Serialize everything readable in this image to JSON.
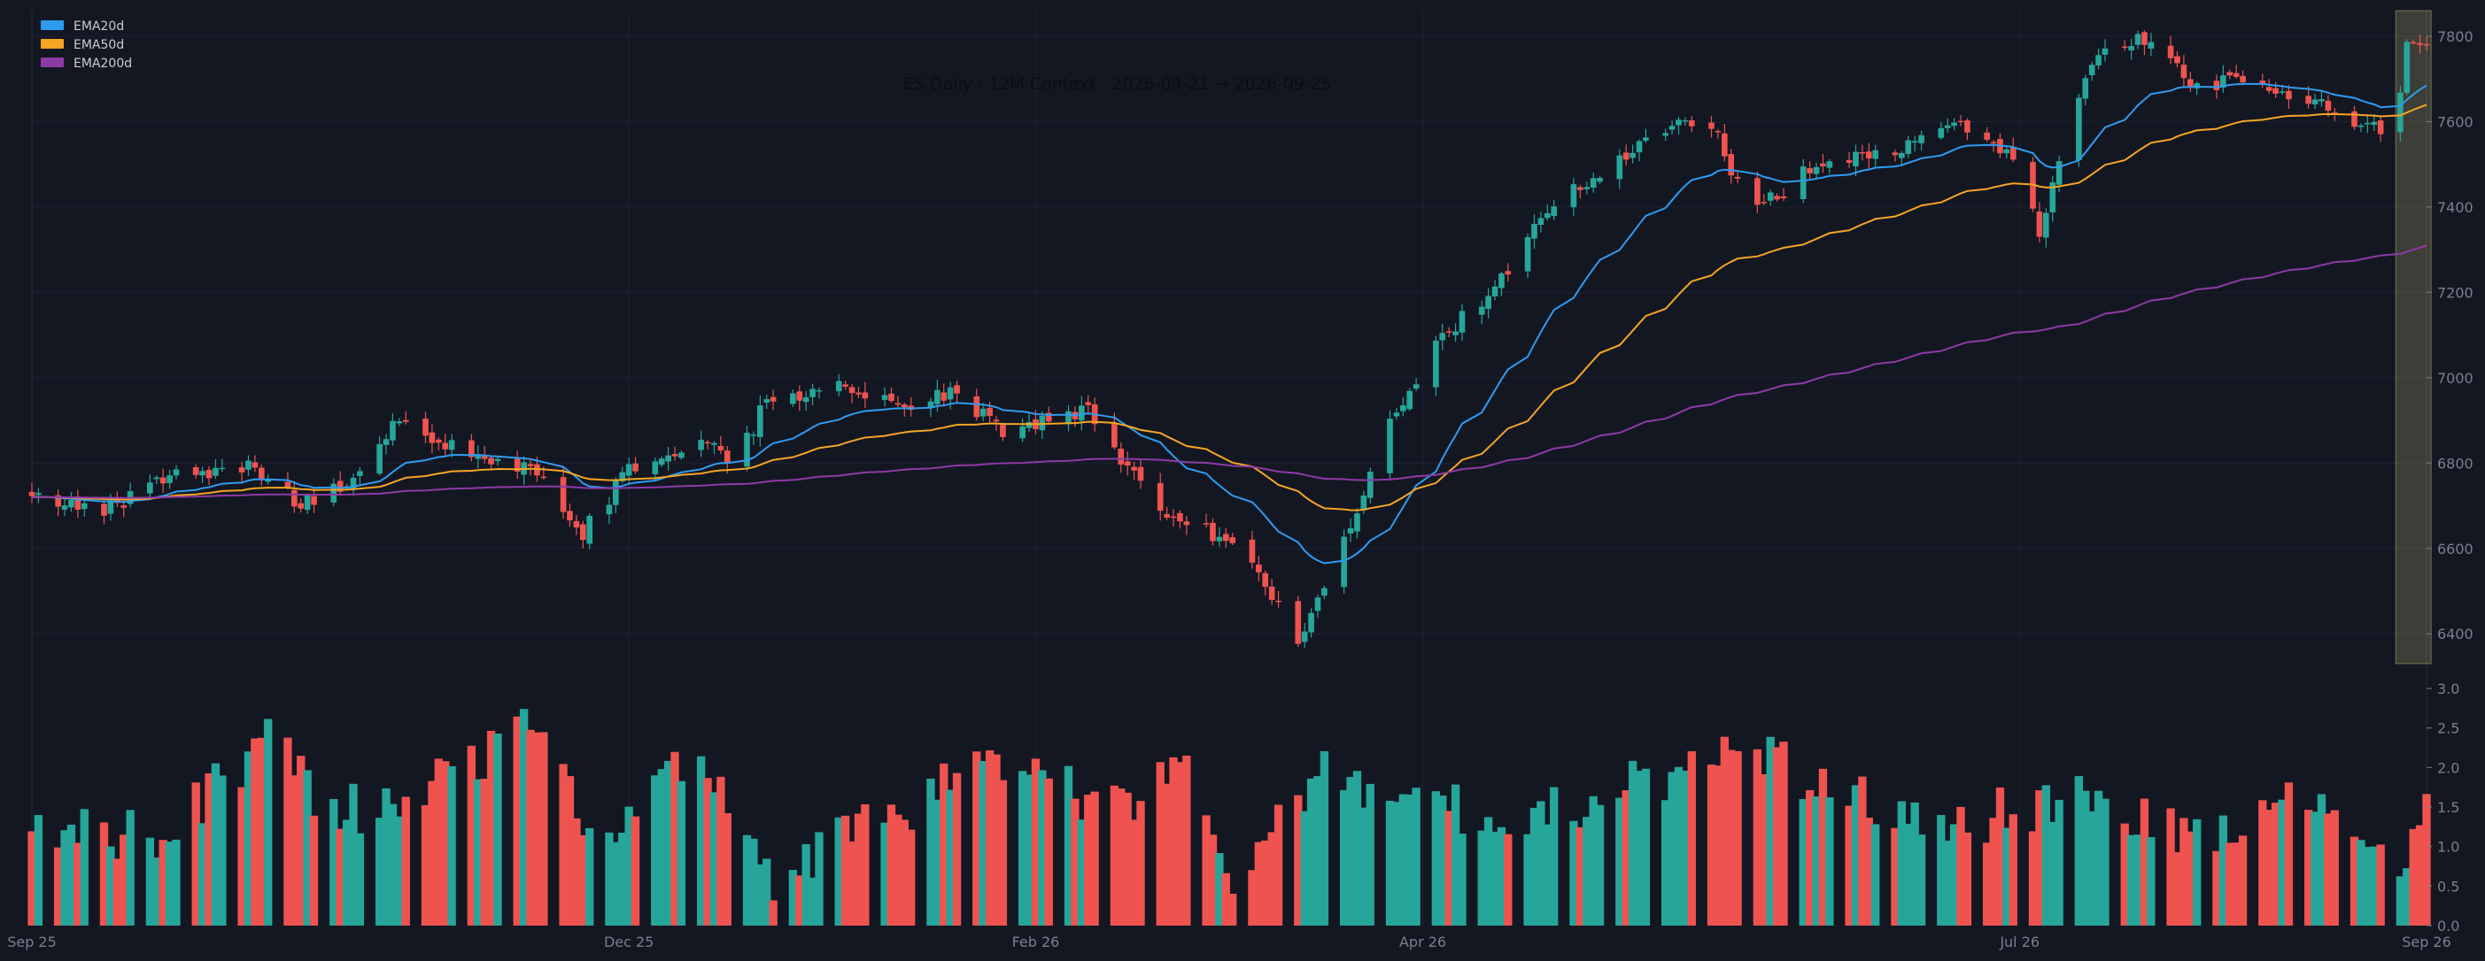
{
  "chart_data": {
    "type": "candlestick",
    "title": "ES Daily · 12M Context · 2026-09-21 → 2026-09-25",
    "start_date": "2025-09-25",
    "end_date": "2026-09-25",
    "price_axis": {
      "ylim": [
        6330,
        7860
      ],
      "ticks": [
        6400,
        6600,
        6800,
        7000,
        7200,
        7400,
        7600,
        7800
      ]
    },
    "volume_axis": {
      "ylim": [
        0,
        3.0
      ],
      "ticks": [
        "0.0",
        "0.5",
        "1.0",
        "1.5",
        "2.0",
        "2.5",
        "3.0"
      ]
    },
    "x_ticks": [
      {
        "label": "Sep 25",
        "date": "2025-09-25"
      },
      {
        "label": "Dec 25",
        "date": "2025-12-25"
      },
      {
        "label": "Feb 26",
        "date": "2026-02-25"
      },
      {
        "label": "Apr 26",
        "date": "2026-04-25"
      },
      {
        "label": "Jul 26",
        "date": "2026-07-25"
      },
      {
        "label": "Sep 26",
        "date": "2026-09-25"
      }
    ],
    "legend": {
      "placement": "top-left",
      "entries": [
        {
          "name": "EMA20d",
          "color": "#2f9bf0"
        },
        {
          "name": "EMA50d",
          "color": "#f5a524"
        },
        {
          "name": "EMA200d",
          "color": "#8e3aa6"
        }
      ]
    },
    "highlight": {
      "from": "2026-09-21",
      "to": "2026-09-25",
      "color": "#fff59d"
    },
    "close_anchors": [
      [
        "2025-09-25",
        6740
      ],
      [
        "2025-10-05",
        6680
      ],
      [
        "2025-10-15",
        6760
      ],
      [
        "2025-10-28",
        6800
      ],
      [
        "2025-11-05",
        6700
      ],
      [
        "2025-11-12",
        6760
      ],
      [
        "2025-11-20",
        6900
      ],
      [
        "2025-12-01",
        6820
      ],
      [
        "2025-12-10",
        6790
      ],
      [
        "2025-12-18",
        6640
      ],
      [
        "2025-12-25",
        6780
      ],
      [
        "2026-01-05",
        6860
      ],
      [
        "2026-01-10",
        6790
      ],
      [
        "2026-01-15",
        6950
      ],
      [
        "2026-01-25",
        6980
      ],
      [
        "2026-02-05",
        6940
      ],
      [
        "2026-02-12",
        6960
      ],
      [
        "2026-02-20",
        6880
      ],
      [
        "2026-03-05",
        6920
      ],
      [
        "2026-03-10",
        6800
      ],
      [
        "2026-03-18",
        6660
      ],
      [
        "2026-03-28",
        6620
      ],
      [
        "2026-04-06",
        6390
      ],
      [
        "2026-04-14",
        6640
      ],
      [
        "2026-04-20",
        6900
      ],
      [
        "2026-04-28",
        7100
      ],
      [
        "2026-05-06",
        7200
      ],
      [
        "2026-05-14",
        7400
      ],
      [
        "2026-05-24",
        7500
      ],
      [
        "2026-06-02",
        7600
      ],
      [
        "2026-06-08",
        7600
      ],
      [
        "2026-06-14",
        7380
      ],
      [
        "2026-06-24",
        7500
      ],
      [
        "2026-07-05",
        7520
      ],
      [
        "2026-07-15",
        7600
      ],
      [
        "2026-07-25",
        7500
      ],
      [
        "2026-07-28",
        7350
      ],
      [
        "2026-08-02",
        7620
      ],
      [
        "2026-08-05",
        7750
      ],
      [
        "2026-08-14",
        7800
      ],
      [
        "2026-08-20",
        7700
      ],
      [
        "2026-09-01",
        7680
      ],
      [
        "2026-09-08",
        7650
      ],
      [
        "2026-09-15",
        7600
      ],
      [
        "2026-09-20",
        7560
      ],
      [
        "2026-09-22",
        7800
      ],
      [
        "2026-09-25",
        7780
      ]
    ],
    "volume_anchors": [
      [
        "2025-09-25",
        1.1
      ],
      [
        "2025-10-15",
        1.2
      ],
      [
        "2025-11-01",
        2.4
      ],
      [
        "2025-11-10",
        1.4
      ],
      [
        "2025-12-01",
        2.0
      ],
      [
        "2025-12-10",
        2.5
      ],
      [
        "2025-12-20",
        1.2
      ],
      [
        "2026-01-05",
        2.2
      ],
      [
        "2026-01-15",
        0.6
      ],
      [
        "2026-02-01",
        1.4
      ],
      [
        "2026-02-20",
        2.0
      ],
      [
        "2026-03-10",
        1.5
      ],
      [
        "2026-03-20",
        2.1
      ],
      [
        "2026-03-28",
        0.5
      ],
      [
        "2026-04-10",
        2.0
      ],
      [
        "2026-04-25",
        1.5
      ],
      [
        "2026-05-15",
        1.5
      ],
      [
        "2026-06-15",
        2.2
      ],
      [
        "2026-06-25",
        1.7
      ],
      [
        "2026-07-15",
        1.3
      ],
      [
        "2026-08-05",
        1.6
      ],
      [
        "2026-08-25",
        1.1
      ],
      [
        "2026-09-10",
        1.7
      ],
      [
        "2026-09-20",
        0.5
      ],
      [
        "2026-09-25",
        1.6
      ]
    ],
    "ema_periods": [
      20,
      50,
      200
    ],
    "ema_seed_value": 6720,
    "colors": {
      "up": "#26a69a",
      "down": "#ef5350",
      "grid": "#1e2230",
      "background": "#131722"
    }
  }
}
